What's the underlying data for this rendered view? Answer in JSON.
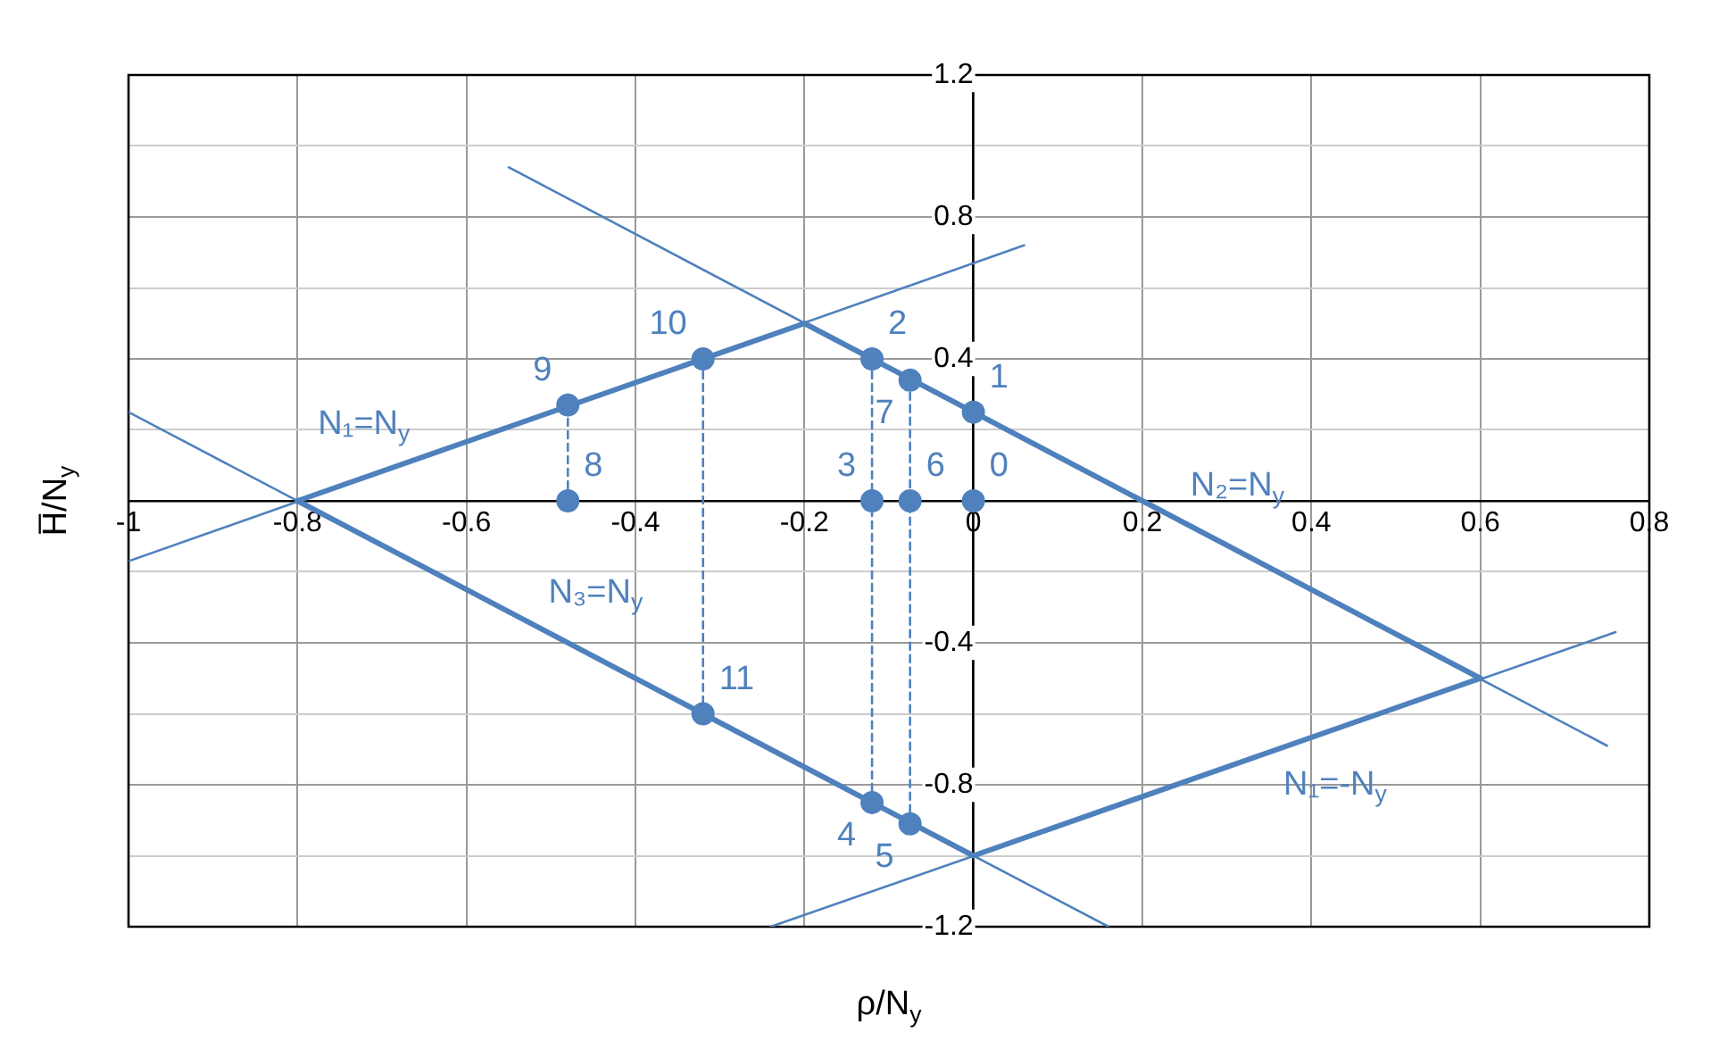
{
  "chart_data": {
    "type": "line",
    "xlabel": "ρ/N$_{y}$",
    "ylabel": "H̅/N$_{y}$",
    "xlim": [
      -1,
      0.8
    ],
    "xticks": [
      -1,
      -0.8,
      -0.6,
      -0.4,
      -0.2,
      0,
      0.2,
      0.4,
      0.6,
      0.8
    ],
    "ylim": [
      -1.2,
      1.2
    ],
    "yticks": [
      -1.2,
      {
        "value": -1,
        "label": null
      },
      -0.8,
      {
        "value": -0.6,
        "label": null
      },
      -0.4,
      {
        "value": -0.2,
        "label": null
      },
      {
        "value": 0,
        "label": null
      },
      {
        "value": 0.2,
        "label": null
      },
      0.4,
      {
        "value": 0.6,
        "label": null
      },
      0.8,
      {
        "value": 1,
        "label": null
      },
      1.2
    ],
    "grid": true,
    "marker": "none",
    "series": [
      {
        "x": [
          -0.8,
          -0.2,
          0.6
        ],
        "values": [
          0,
          0.5,
          -0.5
        ],
        "color": "#4f81bd"
      },
      {
        "x": [
          -0.8,
          0,
          0.6
        ],
        "values": [
          0,
          -1,
          -0.5
        ],
        "color": "#4f81bd"
      },
      {
        "x": [
          -0.48,
          -0.48
        ],
        "values": [
          0,
          0.27
        ],
        "color": "#4f81bd",
        "line_style": "dashed"
      },
      {
        "x": [
          -0.32,
          -0.32
        ],
        "values": [
          0.4,
          -0.6
        ],
        "color": "#4f81bd",
        "line_style": "dashed"
      },
      {
        "x": [
          -0.12,
          -0.12
        ],
        "values": [
          0.4,
          -0.85
        ],
        "color": "#4f81bd",
        "line_style": "dashed"
      },
      {
        "x": [
          -0.075,
          -0.075
        ],
        "values": [
          0.34,
          -0.91
        ],
        "color": "#4f81bd",
        "line_style": "dashed"
      },
      {
        "x": [
          -1,
          0.06
        ],
        "values": [
          -0.17,
          0.72
        ],
        "color": "#4f81bd"
      },
      {
        "x": [
          -0.55,
          0.75
        ],
        "values": [
          0.94,
          -0.69
        ],
        "color": "#4f81bd"
      },
      {
        "x": [
          -1,
          0.16
        ],
        "values": [
          0.25,
          -1.2
        ],
        "color": "#4f81bd"
      },
      {
        "x": [
          -0.24,
          0.76
        ],
        "values": [
          -1.2,
          -0.37
        ],
        "color": "#4f81bd"
      },
      {
        "type": "scatter",
        "marker": "circle",
        "x": [
          0,
          0,
          -0.12,
          -0.12,
          -0.12,
          -0.075,
          -0.075,
          -0.075,
          -0.48,
          -0.48,
          -0.32,
          -0.32
        ],
        "values": [
          0,
          0.25,
          0.4,
          0,
          -0.85,
          -0.91,
          0,
          0.34,
          0,
          0.27,
          0.4,
          -0.6
        ],
        "color": "#4f81bd"
      }
    ],
    "annotations": [
      {
        "text": "0",
        "x": 0,
        "y": 0
      },
      {
        "text": "1",
        "x": 0,
        "y": 0.25
      },
      {
        "text": "2",
        "x": -0.12,
        "y": 0.4
      },
      {
        "text": "3",
        "x": -0.12,
        "y": 0
      },
      {
        "text": "4",
        "x": -0.12,
        "y": -0.85
      },
      {
        "text": "5",
        "x": -0.075,
        "y": -0.91
      },
      {
        "text": "6",
        "x": -0.075,
        "y": 0
      },
      {
        "text": "7",
        "x": -0.075,
        "y": 0.34
      },
      {
        "text": "8",
        "x": -0.48,
        "y": 0
      },
      {
        "text": "9",
        "x": -0.48,
        "y": 0.27
      },
      {
        "text": "10",
        "x": -0.32,
        "y": 0.4
      },
      {
        "text": "11",
        "x": -0.32,
        "y": -0.6
      },
      {
        "text": "N₁=N$_{y}$",
        "x": -0.65,
        "y": 0.125
      },
      {
        "text": "N₂=N$_{y}$",
        "x": 0.24,
        "y": -0.05
      },
      {
        "text": "N₃=N$_{y}$",
        "x": -0.52,
        "y": -0.35
      },
      {
        "text": "N₁=-N$_{y}$",
        "x": 0.35,
        "y": -0.71
      }
    ]
  }
}
